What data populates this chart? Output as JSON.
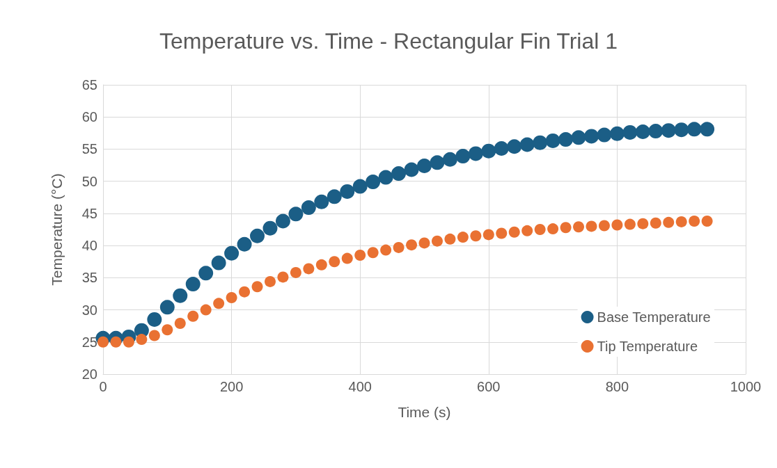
{
  "chart_data": {
    "type": "scatter",
    "title": "Temperature vs. Time - Rectangular Fin Trial 1",
    "xlabel": "Time (s)",
    "ylabel": "Temperature (°C)",
    "x": [
      0,
      20,
      40,
      60,
      80,
      100,
      120,
      140,
      160,
      180,
      200,
      220,
      240,
      260,
      280,
      300,
      320,
      340,
      360,
      380,
      400,
      420,
      440,
      460,
      480,
      500,
      520,
      540,
      560,
      580,
      600,
      620,
      640,
      660,
      680,
      700,
      720,
      740,
      760,
      780,
      800,
      820,
      840,
      860,
      880,
      900,
      920,
      940
    ],
    "series": [
      {
        "name": "Base Temperature",
        "color": "#1b5e86",
        "values": [
          25.6,
          25.6,
          25.8,
          26.8,
          28.5,
          30.4,
          32.2,
          34,
          35.7,
          37.3,
          38.8,
          40.2,
          41.5,
          42.7,
          43.8,
          44.9,
          45.9,
          46.8,
          47.6,
          48.4,
          49.2,
          49.9,
          50.6,
          51.2,
          51.8,
          52.4,
          52.9,
          53.4,
          53.9,
          54.3,
          54.7,
          55.1,
          55.4,
          55.7,
          56,
          56.3,
          56.5,
          56.8,
          57,
          57.2,
          57.4,
          57.6,
          57.7,
          57.8,
          57.9,
          58,
          58.1,
          58.1
        ]
      },
      {
        "name": "Tip Temperature",
        "color": "#e97132",
        "values": [
          25,
          25,
          25,
          25.4,
          26,
          26.9,
          27.9,
          29,
          30,
          31,
          31.9,
          32.8,
          33.6,
          34.4,
          35.1,
          35.8,
          36.4,
          37,
          37.5,
          38,
          38.5,
          38.9,
          39.3,
          39.7,
          40.1,
          40.4,
          40.7,
          41,
          41.3,
          41.5,
          41.7,
          41.9,
          42.1,
          42.3,
          42.5,
          42.6,
          42.8,
          42.9,
          43,
          43.1,
          43.2,
          43.3,
          43.4,
          43.5,
          43.6,
          43.7,
          43.8,
          43.8
        ]
      }
    ],
    "xlim": [
      0,
      1000
    ],
    "xticks": [
      0,
      200,
      400,
      600,
      800,
      1000
    ],
    "ylim": [
      20,
      65
    ],
    "yticks": [
      20,
      25,
      30,
      35,
      40,
      45,
      50,
      55,
      60,
      65
    ],
    "grid": true,
    "legend": "bottom right",
    "marker": "circle"
  }
}
